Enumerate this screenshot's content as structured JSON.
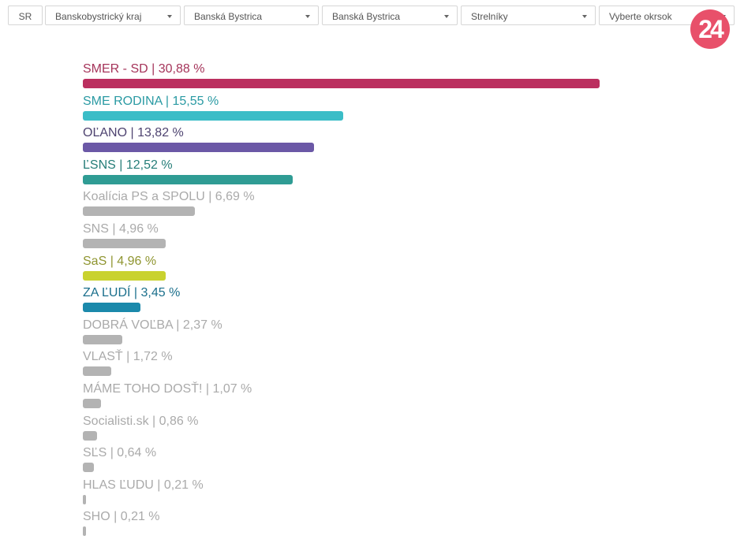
{
  "filters": {
    "sr": "SR",
    "region": "Banskobystrický kraj",
    "district": "Banská Bystrica",
    "city": "Banská Bystrica",
    "municipality": "Strelníky",
    "precinct": "Vyberte okrsok"
  },
  "logo": "24",
  "chart_data": {
    "type": "bar",
    "orientation": "horizontal",
    "title": "",
    "xlabel": "",
    "ylabel": "",
    "xlim": [
      0,
      30.88
    ],
    "series": [
      {
        "name": "SMER - SD",
        "value": 30.88,
        "label": "SMER - SD | 30,88 %",
        "color": "#bb2f5f",
        "text": "#a5345a"
      },
      {
        "name": "SME RODINA",
        "value": 15.55,
        "label": "SME RODINA | 15,55 %",
        "color": "#3bbdc7",
        "text": "#2a9aa3"
      },
      {
        "name": "OĽANO",
        "value": 13.82,
        "label": "OĽANO | 13,82 %",
        "color": "#6b58a6",
        "text": "#4e4370"
      },
      {
        "name": "ĽSNS",
        "value": 12.52,
        "label": "ĽSNS | 12,52 %",
        "color": "#2f9c94",
        "text": "#257d78"
      },
      {
        "name": "Koalícia PS a SPOLU",
        "value": 6.69,
        "label": "Koalícia PS a SPOLU | 6,69 %",
        "color": "#b3b3b3",
        "text": "#aaaaaa"
      },
      {
        "name": "SNS",
        "value": 4.96,
        "label": "SNS | 4,96 %",
        "color": "#b3b3b3",
        "text": "#aaaaaa"
      },
      {
        "name": "SaS",
        "value": 4.96,
        "label": "SaS | 4,96 %",
        "color": "#c9d22f",
        "text": "#8f9530"
      },
      {
        "name": "ZA ĽUDÍ",
        "value": 3.45,
        "label": "ZA ĽUDÍ | 3,45 %",
        "color": "#1b89ab",
        "text": "#1b6f8c"
      },
      {
        "name": "DOBRÁ VOĽBA",
        "value": 2.37,
        "label": "DOBRÁ VOĽBA | 2,37 %",
        "color": "#b3b3b3",
        "text": "#aaaaaa"
      },
      {
        "name": "VLASŤ",
        "value": 1.72,
        "label": "VLASŤ | 1,72 %",
        "color": "#b3b3b3",
        "text": "#aaaaaa"
      },
      {
        "name": "MÁME TOHO DOSŤ!",
        "value": 1.07,
        "label": "MÁME TOHO DOSŤ! | 1,07 %",
        "color": "#b3b3b3",
        "text": "#aaaaaa"
      },
      {
        "name": "Socialisti.sk",
        "value": 0.86,
        "label": "Socialisti.sk | 0,86 %",
        "color": "#b3b3b3",
        "text": "#aaaaaa"
      },
      {
        "name": "SĽS",
        "value": 0.64,
        "label": "SĽS | 0,64 %",
        "color": "#b3b3b3",
        "text": "#aaaaaa"
      },
      {
        "name": "HLAS ĽUDU",
        "value": 0.21,
        "label": "HLAS ĽUDU | 0,21 %",
        "color": "#b3b3b3",
        "text": "#aaaaaa"
      },
      {
        "name": "SHO",
        "value": 0.21,
        "label": "SHO | 0,21 %",
        "color": "#b3b3b3",
        "text": "#aaaaaa"
      }
    ]
  }
}
